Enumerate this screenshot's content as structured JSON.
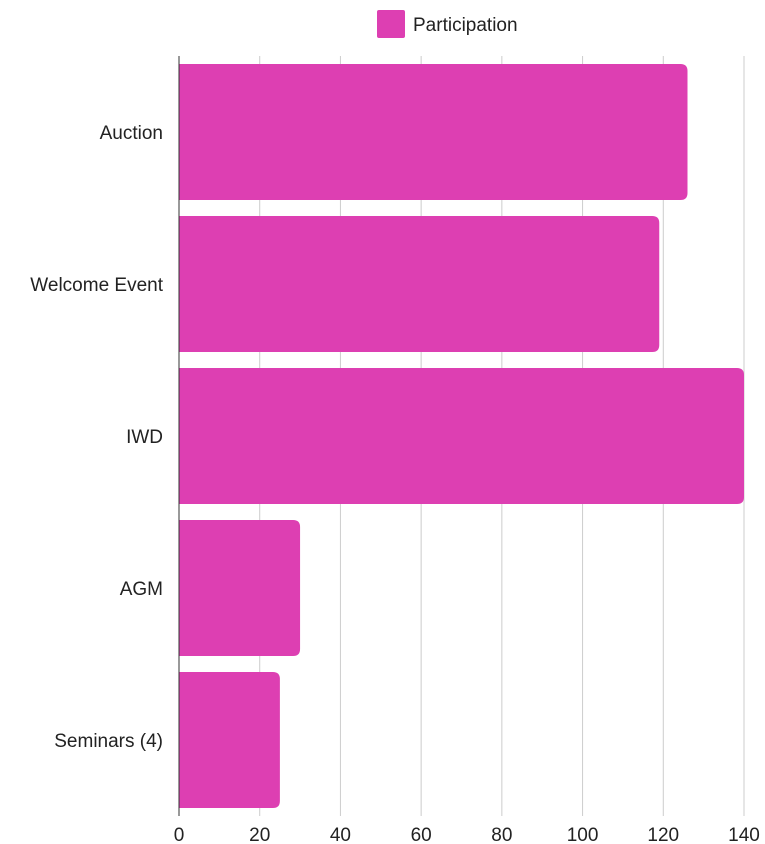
{
  "chart_data": {
    "type": "bar",
    "orientation": "horizontal",
    "categories": [
      "Auction",
      "Welcome Event",
      "IWD",
      "AGM",
      "Seminars (4)"
    ],
    "series": [
      {
        "name": "Participation",
        "values": [
          126,
          119,
          140,
          30,
          25
        ],
        "color": "#DD3FB2"
      }
    ],
    "xlim": [
      0,
      140
    ],
    "xticks": [
      0,
      20,
      40,
      60,
      80,
      100,
      120,
      140
    ],
    "xlabel": "",
    "ylabel": "",
    "title": "",
    "grid": true,
    "legend": {
      "position": "top-center"
    }
  }
}
